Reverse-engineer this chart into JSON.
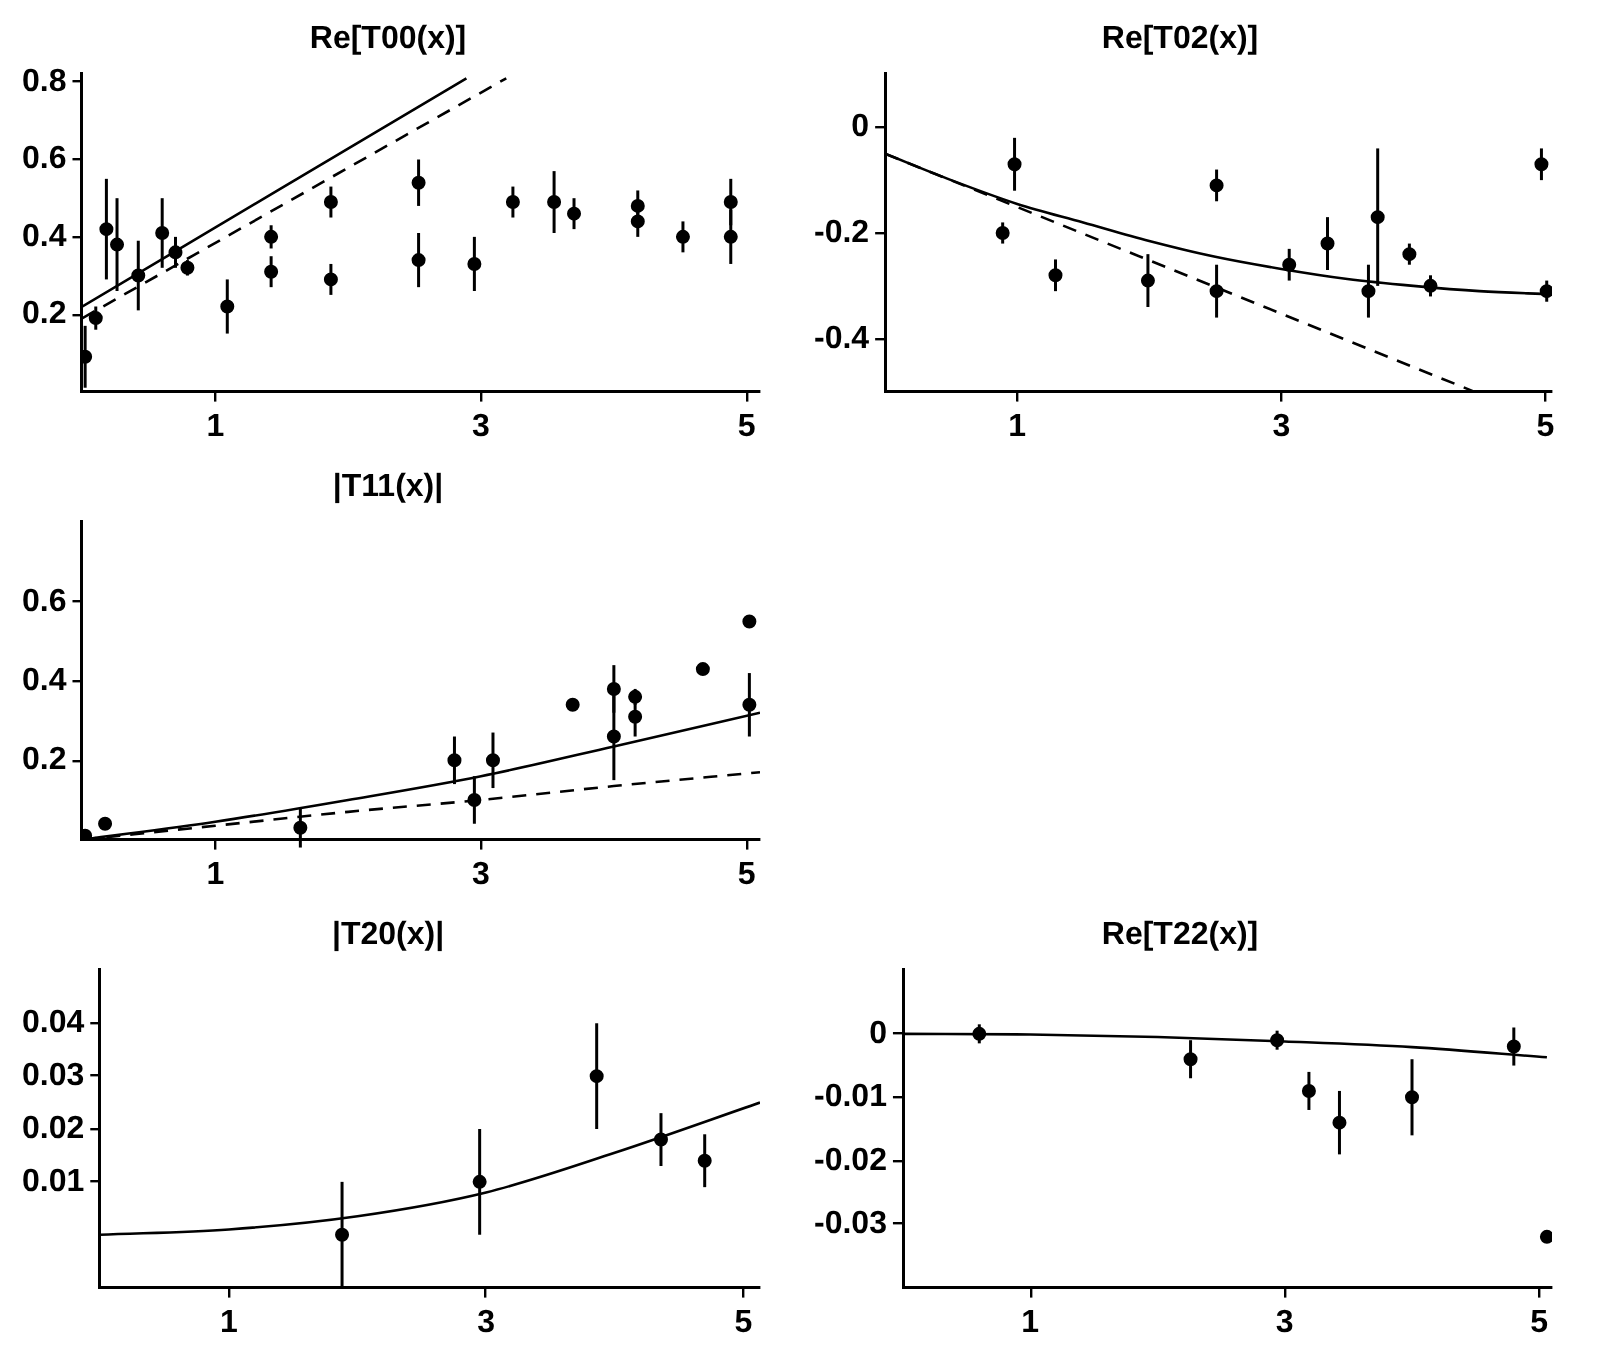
{
  "chart_data": [
    {
      "type": "scatter",
      "title": "Re[T00(x)]",
      "xlim": [
        0,
        5.1
      ],
      "ylim": [
        0,
        0.82
      ],
      "xticks": [
        1,
        3,
        5
      ],
      "yticks": [
        0.2,
        0.4,
        0.6,
        0.8
      ],
      "marker": "circle",
      "series": [
        {
          "color": "#000000",
          "x": [
            0.02,
            0.1,
            0.18,
            0.26,
            0.42,
            0.6,
            0.7,
            0.79,
            1.09,
            1.42,
            1.42,
            1.87,
            1.87,
            2.53,
            2.53,
            2.95,
            3.24,
            3.55,
            3.7,
            4.18,
            4.18,
            4.52,
            4.88,
            4.88
          ],
          "values": [
            0.09,
            0.19,
            0.42,
            0.38,
            0.3,
            0.41,
            0.36,
            0.32,
            0.22,
            0.4,
            0.31,
            0.49,
            0.29,
            0.54,
            0.34,
            0.33,
            0.49,
            0.49,
            0.46,
            0.48,
            0.44,
            0.4,
            0.49,
            0.4
          ],
          "errors": [
            0.08,
            0.03,
            0.13,
            0.12,
            0.09,
            0.09,
            0.04,
            0.02,
            0.07,
            0.03,
            0.04,
            0.04,
            0.04,
            0.06,
            0.07,
            0.07,
            0.04,
            0.08,
            0.04,
            0.04,
            0.04,
            0.04,
            0.06,
            0.07
          ]
        },
        {
          "type": "line",
          "color": "#000000",
          "marker": "none",
          "line_style": "solid",
          "x": [
            0,
            2.89
          ],
          "values": [
            0.22,
            0.81
          ]
        },
        {
          "type": "line",
          "color": "#000000",
          "marker": "none",
          "line_style": "dashed",
          "x": [
            0,
            3.19
          ],
          "values": [
            0.19,
            0.81
          ]
        }
      ]
    },
    {
      "type": "scatter",
      "title": "Re[T02(x)]",
      "xlim": [
        0,
        5.05
      ],
      "ylim": [
        -0.5,
        0.1
      ],
      "xticks": [
        1,
        3,
        5
      ],
      "yticks": [
        -0.4,
        -0.2,
        0
      ],
      "marker": "circle",
      "series": [
        {
          "color": "#000000",
          "x": [
            0.89,
            0.98,
            1.29,
            1.99,
            2.51,
            2.51,
            3.06,
            3.35,
            3.66,
            3.73,
            3.97,
            4.13,
            4.97,
            5.01
          ],
          "values": [
            -0.2,
            -0.07,
            -0.28,
            -0.29,
            -0.11,
            -0.31,
            -0.26,
            -0.22,
            -0.31,
            -0.17,
            -0.24,
            -0.3,
            -0.07,
            -0.31
          ],
          "errors": [
            0.02,
            0.05,
            0.03,
            0.05,
            0.03,
            0.05,
            0.03,
            0.05,
            0.05,
            0.13,
            0.02,
            0.02,
            0.03,
            0.02
          ]
        },
        {
          "type": "line",
          "color": "#000000",
          "marker": "none",
          "line_style": "solid",
          "x": [
            0,
            0.5,
            1,
            1.5,
            2,
            2.5,
            3,
            3.5,
            4,
            4.5,
            5.05
          ],
          "values": [
            -0.05,
            -0.1,
            -0.145,
            -0.18,
            -0.215,
            -0.245,
            -0.268,
            -0.287,
            -0.3,
            -0.31,
            -0.316
          ]
        },
        {
          "type": "line",
          "color": "#000000",
          "marker": "none",
          "line_style": "dashed",
          "x": [
            0,
            4.46
          ],
          "values": [
            -0.05,
            -0.5
          ]
        }
      ]
    },
    {
      "type": "scatter",
      "title": "|T11(x)|",
      "xlim": [
        0,
        5.1
      ],
      "ylim": [
        0,
        0.8
      ],
      "xticks": [
        1,
        3,
        5
      ],
      "yticks": [
        0.2,
        0.4,
        0.6
      ],
      "marker": "circle",
      "series": [
        {
          "color": "#000000",
          "x": [
            0.02,
            0.17,
            1.64,
            2.8,
            2.95,
            3.09,
            3.69,
            4.0,
            4.0,
            4.16,
            4.16,
            4.67,
            5.02,
            5.02
          ],
          "values": [
            0.01,
            0.04,
            0.03,
            0.2,
            0.1,
            0.2,
            0.34,
            0.38,
            0.26,
            0.36,
            0.31,
            0.43,
            0.55,
            0.34
          ],
          "errors": [
            null,
            0.01,
            0.05,
            0.06,
            0.06,
            0.07,
            0.01,
            0.06,
            0.11,
            0.02,
            0.05,
            0.01,
            0.01,
            0.08
          ]
        },
        {
          "type": "line",
          "color": "#000000",
          "marker": "none",
          "line_style": "solid",
          "x": [
            0,
            1,
            2,
            3,
            4,
            5.1
          ],
          "values": [
            0,
            0.045,
            0.1,
            0.16,
            0.235,
            0.32
          ]
        },
        {
          "type": "line",
          "color": "#000000",
          "marker": "none",
          "line_style": "dashed",
          "x": [
            0,
            1,
            2,
            3,
            4,
            5.1
          ],
          "values": [
            0,
            0.035,
            0.07,
            0.1,
            0.135,
            0.17
          ]
        }
      ]
    },
    {
      "type": "scatter",
      "title": "|T20(x)|",
      "xlim": [
        0,
        5.13
      ],
      "ylim": [
        -0.01,
        0.05
      ],
      "xticks": [
        1,
        3,
        5
      ],
      "yticks": [
        0.01,
        0.02,
        0.03,
        0.04
      ],
      "marker": "circle",
      "series": [
        {
          "color": "#000000",
          "x": [
            1.88,
            2.95,
            3.86,
            4.36,
            4.7
          ],
          "values": [
            0,
            0.01,
            0.03,
            0.018,
            0.014
          ],
          "errors": [
            0.01,
            0.01,
            0.01,
            0.005,
            0.005
          ]
        },
        {
          "type": "line",
          "color": "#000000",
          "marker": "none",
          "line_style": "solid",
          "x": [
            0,
            1,
            2,
            3,
            4,
            5.13
          ],
          "values": [
            0,
            0.001,
            0.0035,
            0.008,
            0.0155,
            0.025
          ]
        }
      ]
    },
    {
      "type": "scatter",
      "title": "Re[T22(x)]",
      "xlim": [
        0,
        5.1
      ],
      "ylim": [
        -0.04,
        0.01
      ],
      "xticks": [
        1,
        3,
        5
      ],
      "yticks": [
        -0.03,
        -0.02,
        -0.01,
        0
      ],
      "marker": "circle",
      "series": [
        {
          "color": "#000000",
          "x": [
            0.6,
            2.26,
            2.94,
            3.19,
            3.43,
            4.0,
            4.8,
            5.06
          ],
          "values": [
            0,
            -0.004,
            -0.001,
            -0.009,
            -0.014,
            -0.01,
            -0.002,
            -0.032
          ],
          "errors": [
            0.0015,
            0.003,
            0.0015,
            0.003,
            0.005,
            0.006,
            0.003,
            null
          ]
        },
        {
          "type": "line",
          "color": "#000000",
          "marker": "none",
          "line_style": "solid",
          "x": [
            0,
            1,
            2,
            3,
            4,
            5.06
          ],
          "values": [
            0,
            -0.0001,
            -0.0005,
            -0.0012,
            -0.0021,
            -0.0037
          ]
        }
      ]
    }
  ]
}
